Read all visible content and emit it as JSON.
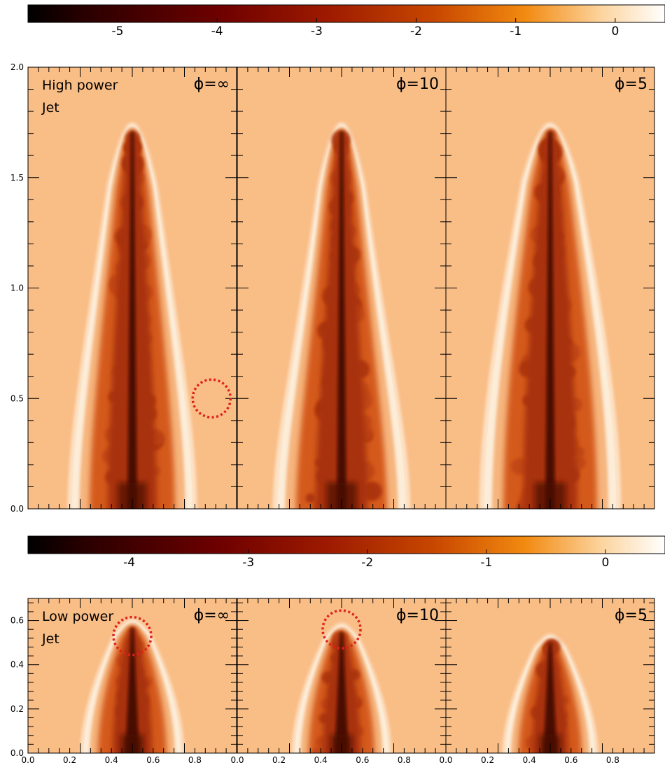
{
  "chart_data": [
    {
      "type": "heatmap",
      "group": "high-power-jet",
      "colorbar": {
        "ticks": [
          -5,
          -4,
          -3,
          -2,
          -1,
          0
        ],
        "range": [
          -5.9,
          0.5
        ]
      },
      "y_ticks": [
        0.0,
        0.5,
        1.0,
        1.5,
        2.0
      ],
      "ylim": [
        0.0,
        2.0
      ],
      "panels": [
        {
          "phi": "ϕ=∞",
          "label_line1": "High power",
          "label_line2": "Jet",
          "tip_height": 1.74,
          "base_half_width": 0.31,
          "shoulder_height": 0.62,
          "shoulder_half_width": 0.22,
          "marker": {
            "x": 0.88,
            "y": 0.5
          }
        },
        {
          "phi": "ϕ=10",
          "label_line1": "",
          "label_line2": "",
          "tip_height": 1.74,
          "base_half_width": 0.33,
          "shoulder_height": 0.62,
          "shoulder_half_width": 0.21,
          "marker": null
        },
        {
          "phi": "ϕ=5",
          "label_line1": "",
          "label_line2": "",
          "tip_height": 1.74,
          "base_half_width": 0.34,
          "shoulder_height": 0.72,
          "shoulder_half_width": 0.25,
          "marker": null
        }
      ]
    },
    {
      "type": "heatmap",
      "group": "low-power-jet",
      "colorbar": {
        "ticks": [
          -4,
          -3,
          -2,
          -1,
          0
        ],
        "range": [
          -4.85,
          0.5
        ]
      },
      "x_ticks": [
        0.0,
        0.2,
        0.4,
        0.6,
        0.8
      ],
      "y_ticks": [
        0.0,
        0.2,
        0.4,
        0.6
      ],
      "xlim": [
        0.0,
        1.0
      ],
      "ylim": [
        0.0,
        0.7
      ],
      "panels": [
        {
          "phi": "ϕ=∞",
          "label_line1": "Low power",
          "label_line2": "Jet",
          "tip_height": 0.6,
          "base_half_width": 0.25,
          "shoulder_height": 0.35,
          "shoulder_half_width": 0.16,
          "marker": {
            "x": 0.5,
            "y": 0.53
          }
        },
        {
          "phi": "ϕ=10",
          "label_line1": "",
          "label_line2": "",
          "tip_height": 0.58,
          "base_half_width": 0.24,
          "shoulder_height": 0.35,
          "shoulder_half_width": 0.15,
          "marker": {
            "x": 0.5,
            "y": 0.56
          }
        },
        {
          "phi": "ϕ=5",
          "label_line1": "",
          "label_line2": "",
          "tip_height": 0.53,
          "base_half_width": 0.23,
          "shoulder_height": 0.32,
          "shoulder_half_width": 0.14,
          "marker": null
        }
      ]
    }
  ],
  "colors": {
    "ambient": "#f9bd86",
    "shell_outer": "#fde2c6",
    "shell_inner": "#fcedd9",
    "cocoon": "#d45a1e",
    "cocoon_mid": "#a8300f",
    "core": "#4a0806",
    "marker": "#e0201a",
    "frame": "#000000",
    "colormap": [
      "#000000",
      "#2a0000",
      "#6e0000",
      "#9d1a00",
      "#c84800",
      "#f28a10",
      "#fcd49e",
      "#ffffff"
    ]
  }
}
